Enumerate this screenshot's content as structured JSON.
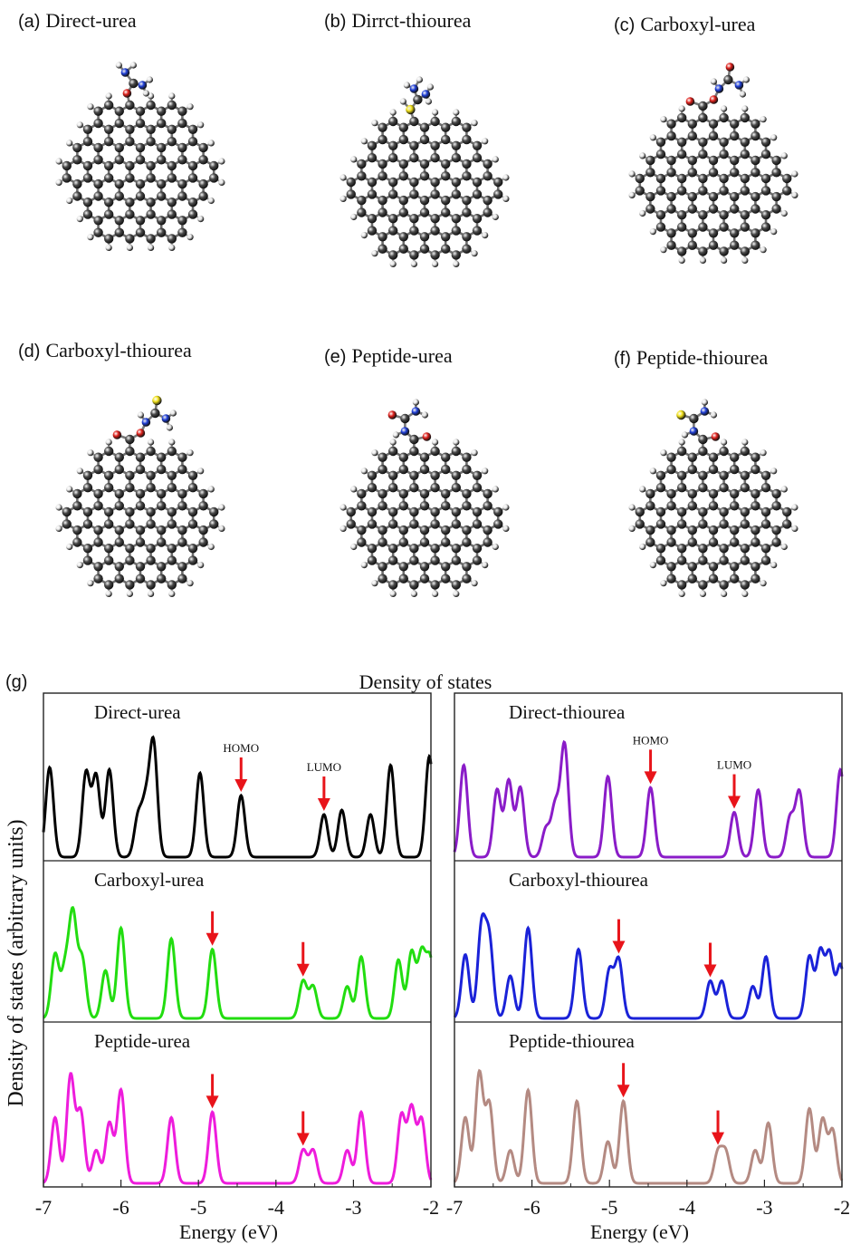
{
  "molecules": [
    {
      "letter": "(a)",
      "name": "Direct-urea",
      "linker": "direct",
      "group": "urea"
    },
    {
      "letter": "(b)",
      "name": "Dirrct-thiourea",
      "linker": "direct",
      "group": "thiourea"
    },
    {
      "letter": "(c)",
      "name": "Carboxyl-urea",
      "linker": "carboxyl",
      "group": "urea"
    },
    {
      "letter": "(d)",
      "name": "Carboxyl-thiourea",
      "linker": "carboxyl",
      "group": "thiourea"
    },
    {
      "letter": "(e)",
      "name": "Peptide-urea",
      "linker": "peptide",
      "group": "urea"
    },
    {
      "letter": "(f)",
      "name": "Peptide-thiourea",
      "linker": "peptide",
      "group": "thiourea"
    }
  ],
  "atom_colors": {
    "carbon": "#4a4a4a",
    "hydrogen": "#e8e8e8",
    "oxygen": "#e0201b",
    "nitrogen": "#1f3fd8",
    "sulfur": "#f2e21a"
  },
  "dos_figure": {
    "panel_label": "(g)",
    "title": "Density of states",
    "ylabel": "Density of states (arbitrary units)",
    "xlabel_left": "Energy (eV)",
    "xlabel_right": "Energy (eV)",
    "arrow_color": "#e8141a",
    "homo_label": "HOMO",
    "lumo_label": "LUMO"
  },
  "chart_data": [
    {
      "type": "line",
      "name": "Direct-urea",
      "color": "#000000",
      "xlim": [
        -7,
        -2
      ],
      "ylim": [
        0,
        1.1
      ],
      "sigma": 0.05,
      "homo": -4.45,
      "lumo": -3.38,
      "show_labels": true,
      "grid": false,
      "x_ticks": [
        "-7",
        "-6",
        "-5",
        "-4",
        "-3",
        "-2"
      ],
      "peaks": [
        [
          -6.92,
          0.8
        ],
        [
          -6.45,
          0.75
        ],
        [
          -6.32,
          0.72
        ],
        [
          -6.15,
          0.78
        ],
        [
          -5.78,
          0.35
        ],
        [
          -5.68,
          0.45
        ],
        [
          -5.58,
          1.0
        ],
        [
          -4.98,
          0.75
        ],
        [
          -4.45,
          0.55
        ],
        [
          -3.38,
          0.38
        ],
        [
          -3.15,
          0.42
        ],
        [
          -2.78,
          0.38
        ],
        [
          -2.52,
          0.82
        ],
        [
          -2.02,
          0.9
        ]
      ]
    },
    {
      "type": "line",
      "name": "Direct-thiourea",
      "color": "#8a1cc8",
      "xlim": [
        -7,
        -2
      ],
      "ylim": [
        0,
        1.1
      ],
      "sigma": 0.05,
      "homo": -4.47,
      "lumo": -3.39,
      "show_labels": true,
      "grid": false,
      "x_ticks": [
        "-7",
        "-6",
        "-5",
        "-4",
        "-3",
        "-2"
      ],
      "peaks": [
        [
          -6.88,
          0.82
        ],
        [
          -6.45,
          0.6
        ],
        [
          -6.3,
          0.68
        ],
        [
          -6.15,
          0.62
        ],
        [
          -5.82,
          0.25
        ],
        [
          -5.7,
          0.45
        ],
        [
          -5.58,
          1.0
        ],
        [
          -5.02,
          0.72
        ],
        [
          -4.47,
          0.62
        ],
        [
          -3.39,
          0.4
        ],
        [
          -3.08,
          0.6
        ],
        [
          -2.67,
          0.35
        ],
        [
          -2.55,
          0.58
        ],
        [
          -2.02,
          0.78
        ]
      ]
    },
    {
      "type": "line",
      "name": "Carboxyl-urea",
      "color": "#22dd10",
      "xlim": [
        -7,
        -2
      ],
      "ylim": [
        0,
        1.1
      ],
      "sigma": 0.05,
      "homo": -4.82,
      "lumo": -3.65,
      "show_labels": false,
      "grid": false,
      "x_ticks": [
        "-7",
        "-6",
        "-5",
        "-4",
        "-3",
        "-2"
      ],
      "peaks": [
        [
          -6.85,
          0.6
        ],
        [
          -6.72,
          0.45
        ],
        [
          -6.62,
          0.95
        ],
        [
          -6.5,
          0.55
        ],
        [
          -6.2,
          0.45
        ],
        [
          -6.0,
          0.85
        ],
        [
          -5.35,
          0.75
        ],
        [
          -4.82,
          0.65
        ],
        [
          -3.65,
          0.35
        ],
        [
          -3.52,
          0.3
        ],
        [
          -3.08,
          0.3
        ],
        [
          -2.9,
          0.58
        ],
        [
          -2.42,
          0.55
        ],
        [
          -2.25,
          0.62
        ],
        [
          -2.12,
          0.6
        ],
        [
          -2.01,
          0.55
        ]
      ]
    },
    {
      "type": "line",
      "name": "Carboxyl-thiourea",
      "color": "#1a22d8",
      "xlim": [
        -7,
        -2
      ],
      "ylim": [
        0,
        1.1
      ],
      "sigma": 0.05,
      "homo": -4.88,
      "lumo": -3.7,
      "show_labels": false,
      "grid": false,
      "x_ticks": [
        "-7",
        "-6",
        "-5",
        "-4",
        "-3",
        "-2"
      ],
      "peaks": [
        [
          -6.86,
          0.6
        ],
        [
          -6.65,
          0.85
        ],
        [
          -6.55,
          0.72
        ],
        [
          -6.28,
          0.4
        ],
        [
          -6.05,
          0.85
        ],
        [
          -5.4,
          0.65
        ],
        [
          -5.0,
          0.45
        ],
        [
          -4.88,
          0.55
        ],
        [
          -3.7,
          0.35
        ],
        [
          -3.55,
          0.35
        ],
        [
          -3.15,
          0.3
        ],
        [
          -2.98,
          0.58
        ],
        [
          -2.42,
          0.58
        ],
        [
          -2.28,
          0.62
        ],
        [
          -2.16,
          0.6
        ],
        [
          -2.02,
          0.5
        ]
      ]
    },
    {
      "type": "line",
      "name": "Peptide-urea",
      "color": "#ee1cdc",
      "xlim": [
        -7,
        -2
      ],
      "ylim": [
        0,
        1.1
      ],
      "sigma": 0.05,
      "homo": -4.82,
      "lumo": -3.65,
      "show_labels": false,
      "grid": false,
      "x_ticks": [
        "-7",
        "-6",
        "-5",
        "-4",
        "-3",
        "-2"
      ],
      "peaks": [
        [
          -6.85,
          0.6
        ],
        [
          -6.65,
          0.98
        ],
        [
          -6.52,
          0.65
        ],
        [
          -6.32,
          0.3
        ],
        [
          -6.15,
          0.55
        ],
        [
          -6.0,
          0.85
        ],
        [
          -5.35,
          0.6
        ],
        [
          -4.82,
          0.65
        ],
        [
          -3.65,
          0.3
        ],
        [
          -3.52,
          0.3
        ],
        [
          -3.08,
          0.3
        ],
        [
          -2.9,
          0.65
        ],
        [
          -2.38,
          0.62
        ],
        [
          -2.25,
          0.68
        ],
        [
          -2.12,
          0.58
        ]
      ]
    },
    {
      "type": "line",
      "name": "Peptide-thiourea",
      "color": "#b48a82",
      "xlim": [
        -7,
        -2
      ],
      "ylim": [
        0,
        1.1
      ],
      "sigma": 0.05,
      "homo": -4.82,
      "lumo": -3.6,
      "show_labels": false,
      "grid": false,
      "x_ticks": [
        "-7",
        "-6",
        "-5",
        "-4",
        "-3",
        "-2"
      ],
      "peaks": [
        [
          -6.86,
          0.6
        ],
        [
          -6.68,
          1.0
        ],
        [
          -6.55,
          0.72
        ],
        [
          -6.28,
          0.3
        ],
        [
          -6.05,
          0.85
        ],
        [
          -5.42,
          0.75
        ],
        [
          -5.02,
          0.38
        ],
        [
          -4.82,
          0.75
        ],
        [
          -3.6,
          0.28
        ],
        [
          -3.5,
          0.28
        ],
        [
          -3.12,
          0.3
        ],
        [
          -2.95,
          0.55
        ],
        [
          -2.42,
          0.68
        ],
        [
          -2.25,
          0.58
        ],
        [
          -2.12,
          0.48
        ]
      ]
    }
  ]
}
